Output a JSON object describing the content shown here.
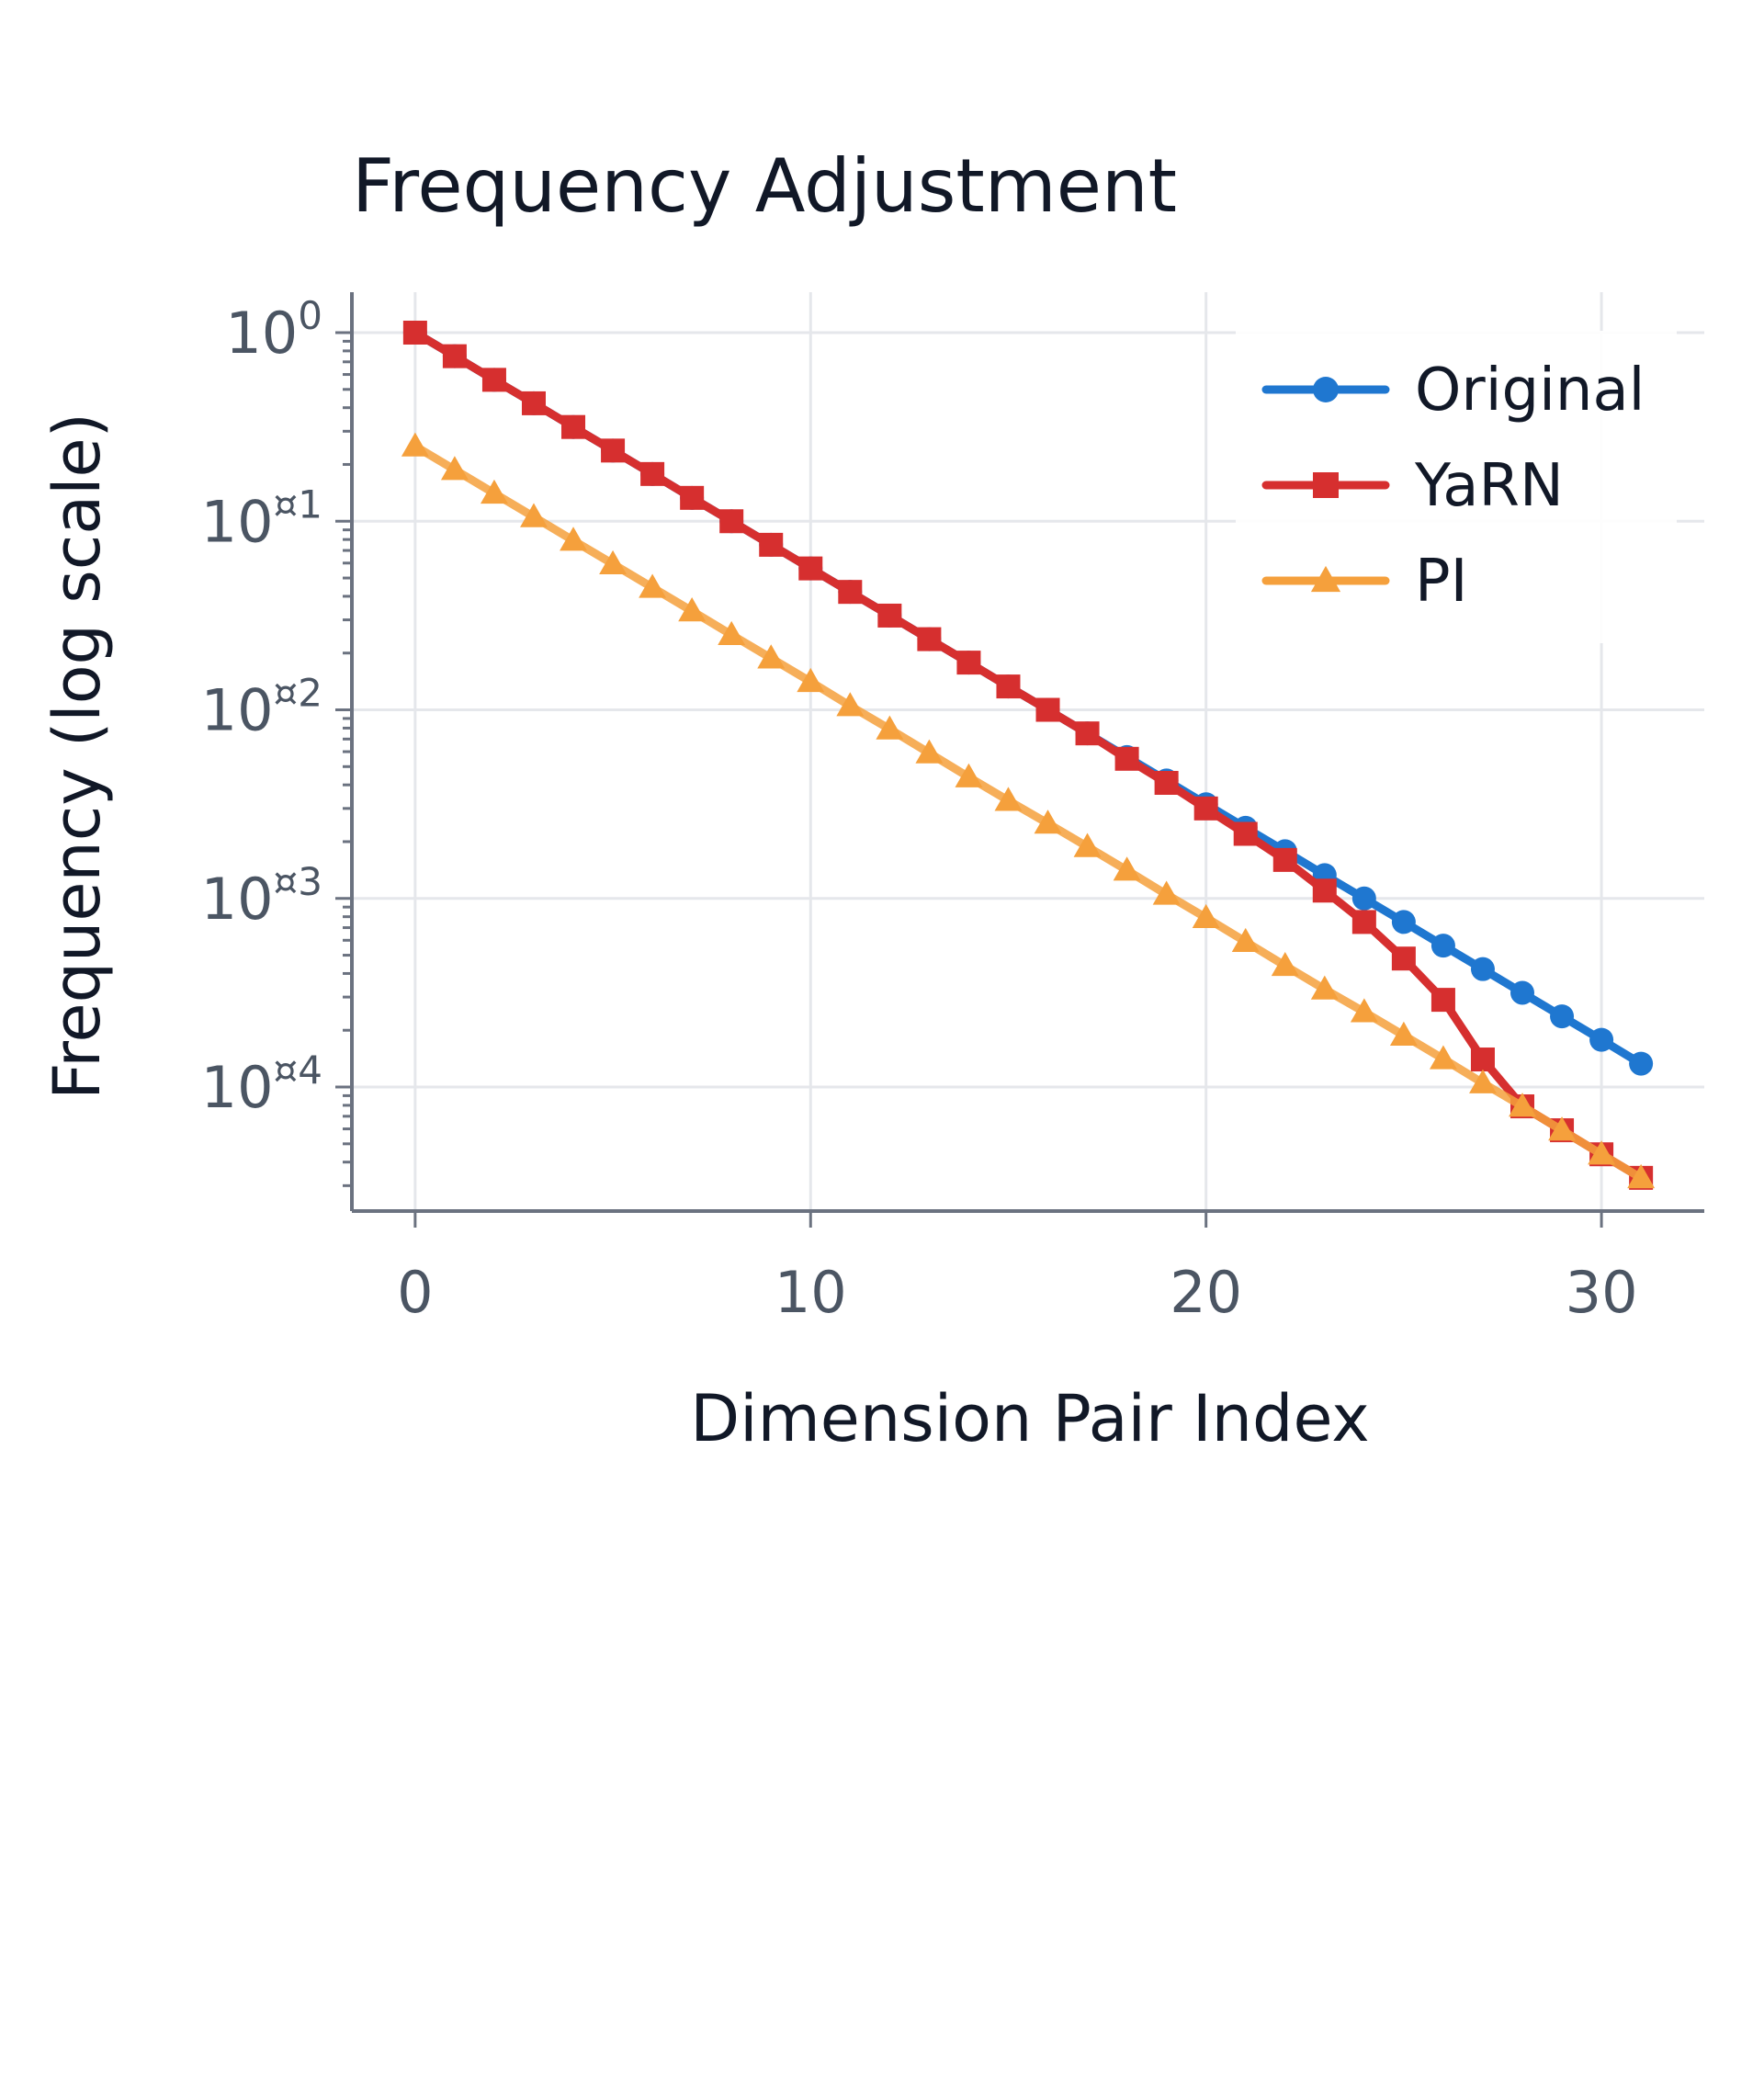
{
  "chart_data": {
    "type": "line",
    "title": "Frequency Adjustment",
    "xlabel": "Dimension Pair Index",
    "ylabel": "Frequency (log scale)",
    "yscale": "log",
    "xlim": [
      -1.6,
      32.6
    ],
    "ylim": [
      2.2e-05,
      1
    ],
    "xticks": [
      "0",
      "10",
      "20",
      "30"
    ],
    "yticks": [
      {
        "base": "10",
        "exp": "0"
      },
      {
        "base": "10",
        "exp": "¤1"
      },
      {
        "base": "10",
        "exp": "¤2"
      },
      {
        "base": "10",
        "exp": "¤3"
      },
      {
        "base": "10",
        "exp": "¤4"
      }
    ],
    "grid": true,
    "legend_position": "top-right",
    "x": [
      0,
      1,
      2,
      3,
      4,
      5,
      6,
      7,
      8,
      9,
      10,
      11,
      12,
      13,
      14,
      15,
      16,
      17,
      18,
      19,
      20,
      21,
      22,
      23,
      24,
      25,
      26,
      27,
      28,
      29,
      30,
      31
    ],
    "series": [
      {
        "name": "Original",
        "color": "#1f77d0",
        "marker": "circle",
        "values": [
          1,
          0.75,
          0.562,
          0.422,
          0.316,
          0.237,
          0.178,
          0.133,
          0.1,
          0.075,
          0.0562,
          0.0422,
          0.0316,
          0.0237,
          0.0178,
          0.0133,
          0.01,
          0.0075,
          0.00562,
          0.00422,
          0.00316,
          0.00237,
          0.00178,
          0.00133,
          0.001,
          0.00075,
          0.000562,
          0.000422,
          0.000316,
          0.000237,
          0.000178,
          0.000133
        ]
      },
      {
        "name": "YaRN",
        "color": "#d62f2f",
        "marker": "square",
        "values": [
          1,
          0.75,
          0.562,
          0.422,
          0.316,
          0.237,
          0.178,
          0.133,
          0.1,
          0.075,
          0.0562,
          0.0422,
          0.0316,
          0.0237,
          0.0178,
          0.0133,
          0.01,
          0.0075,
          0.0055,
          0.0041,
          0.003,
          0.0022,
          0.0016,
          0.0011,
          0.00075,
          0.00048,
          0.00029,
          0.00014,
          7.9e-05,
          5.9e-05,
          4.4e-05,
          3.3e-05
        ]
      },
      {
        "name": "PI",
        "color": "#f5a03c",
        "marker": "triangle",
        "values": [
          0.25,
          0.1875,
          0.1406,
          0.1055,
          0.0791,
          0.0593,
          0.0445,
          0.0334,
          0.025,
          0.0188,
          0.0141,
          0.0105,
          0.0079,
          0.0059,
          0.0044,
          0.0033,
          0.0025,
          0.00188,
          0.00141,
          0.00105,
          0.00079,
          0.00059,
          0.00044,
          0.00033,
          0.00025,
          0.000188,
          0.000141,
          0.000105,
          7.9e-05,
          5.9e-05,
          4.4e-05,
          3.3e-05
        ]
      }
    ]
  }
}
